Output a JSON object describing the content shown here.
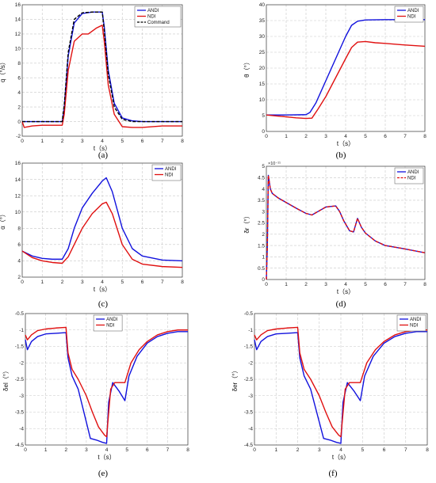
{
  "colors": {
    "andi": "#1111dd",
    "ndi": "#e01010",
    "command": "#000000"
  },
  "captions": [
    "(a)",
    "(b)",
    "(c)",
    "(d)",
    "(e)",
    "(f)"
  ],
  "chart_data": [
    {
      "type": "line",
      "xlabel": "t（s）",
      "ylabel": "q（°/s）",
      "xlim": [
        0,
        8
      ],
      "ylim": [
        -2,
        16
      ],
      "xticks": [
        0,
        1,
        2,
        3,
        4,
        5,
        6,
        7,
        8
      ],
      "yticks": [
        -2,
        0,
        2,
        4,
        6,
        8,
        10,
        12,
        14,
        16
      ],
      "grid": true,
      "legend": "top-right",
      "series": [
        {
          "name": "ANDI",
          "style": "solid",
          "color": "andi",
          "x": [
            0,
            0.5,
            1,
            1.5,
            2,
            2.1,
            2.3,
            2.6,
            3,
            3.5,
            4,
            4.1,
            4.3,
            4.6,
            5,
            5.5,
            6,
            7,
            8
          ],
          "y": [
            0,
            0,
            0,
            0,
            0,
            2,
            9,
            13.5,
            14.8,
            15,
            15,
            13,
            7,
            2.5,
            0.5,
            0.1,
            0,
            0,
            0
          ]
        },
        {
          "name": "NDI",
          "style": "solid",
          "color": "ndi",
          "x": [
            0,
            0.1,
            0.5,
            1,
            1.5,
            2,
            2.1,
            2.3,
            2.6,
            3,
            3.3,
            3.7,
            4,
            4.1,
            4.3,
            4.6,
            5,
            5.5,
            6,
            7,
            8
          ],
          "y": [
            0,
            -0.8,
            -0.6,
            -0.5,
            -0.5,
            -0.5,
            1,
            7,
            11,
            12,
            12,
            12.8,
            13.2,
            11,
            5,
            1,
            -0.7,
            -0.8,
            -0.8,
            -0.6,
            -0.6
          ]
        },
        {
          "name": "Command",
          "style": "dashed",
          "color": "command",
          "x": [
            0,
            0.5,
            1,
            1.5,
            2,
            2.1,
            2.3,
            2.6,
            3,
            3.5,
            4,
            4.1,
            4.3,
            4.6,
            5,
            5.5,
            6,
            7,
            8
          ],
          "y": [
            0,
            0,
            0,
            0,
            0,
            2.2,
            9.5,
            14,
            14.9,
            15,
            15,
            12.5,
            6.5,
            2,
            0.3,
            0,
            0,
            0,
            0
          ]
        }
      ]
    },
    {
      "type": "line",
      "xlabel": "t（s）",
      "ylabel": "θ（°）",
      "xlim": [
        0,
        8
      ],
      "ylim": [
        0,
        40
      ],
      "xticks": [
        0,
        1,
        2,
        3,
        4,
        5,
        6,
        7,
        8
      ],
      "yticks": [
        0,
        5,
        10,
        15,
        20,
        25,
        30,
        35,
        40
      ],
      "grid": true,
      "legend": "top-right",
      "series": [
        {
          "name": "ANDI",
          "style": "solid",
          "color": "andi",
          "x": [
            0,
            1,
            2,
            2.2,
            2.5,
            3,
            3.5,
            4,
            4.3,
            4.6,
            5,
            6,
            7,
            8
          ],
          "y": [
            5.2,
            5.2,
            5.3,
            6,
            9,
            16,
            23,
            30,
            33.5,
            34.8,
            35.2,
            35.3,
            35.3,
            35.3
          ]
        },
        {
          "name": "NDI",
          "style": "solid",
          "color": "ndi",
          "x": [
            0,
            0.5,
            1,
            1.5,
            2,
            2.3,
            2.6,
            3,
            3.5,
            4,
            4.3,
            4.6,
            5,
            5.5,
            6,
            7,
            8
          ],
          "y": [
            5.2,
            4.9,
            4.6,
            4.3,
            4.1,
            4.2,
            7,
            11,
            17,
            23,
            26.5,
            28.2,
            28.4,
            28,
            27.8,
            27.3,
            26.9
          ]
        }
      ]
    },
    {
      "type": "line",
      "xlabel": "t（s）",
      "ylabel": "α（°）",
      "xlim": [
        0,
        8
      ],
      "ylim": [
        2,
        16
      ],
      "xticks": [
        0,
        1,
        2,
        3,
        4,
        5,
        6,
        7,
        8
      ],
      "yticks": [
        2,
        4,
        6,
        8,
        10,
        12,
        14,
        16
      ],
      "grid": true,
      "legend": "top-right",
      "series": [
        {
          "name": "ANDI",
          "style": "solid",
          "color": "andi",
          "x": [
            0,
            0.5,
            1,
            1.5,
            2,
            2.3,
            2.6,
            3,
            3.5,
            4,
            4.2,
            4.5,
            5,
            5.5,
            6,
            7,
            8
          ],
          "y": [
            5.2,
            4.6,
            4.3,
            4.2,
            4.2,
            5.5,
            8,
            10.5,
            12.3,
            13.8,
            14.2,
            12.5,
            8,
            5.5,
            4.6,
            4.1,
            4.0
          ]
        },
        {
          "name": "NDI",
          "style": "solid",
          "color": "ndi",
          "x": [
            0,
            0.5,
            1,
            1.5,
            2,
            2.3,
            2.6,
            3,
            3.5,
            4,
            4.2,
            4.5,
            5,
            5.5,
            6,
            7,
            8
          ],
          "y": [
            5.2,
            4.4,
            4.0,
            3.8,
            3.7,
            4.5,
            6,
            8,
            9.8,
            11,
            11.2,
            9.8,
            6,
            4.2,
            3.6,
            3.3,
            3.2
          ]
        }
      ]
    },
    {
      "type": "line",
      "xlabel": "t（s）",
      "ylabel": "δr（°）",
      "sci_multiplier": "×10⁻¹¹",
      "xlim": [
        0,
        8
      ],
      "ylim": [
        0,
        5
      ],
      "xticks": [
        0,
        1,
        2,
        3,
        4,
        5,
        6,
        7,
        8
      ],
      "yticks": [
        0,
        0.5,
        1,
        1.5,
        2,
        2.5,
        3,
        3.5,
        4,
        4.5,
        5
      ],
      "grid": true,
      "legend": "top-right",
      "series": [
        {
          "name": "ANDI",
          "style": "solid",
          "color": "andi",
          "x": [
            0,
            0.05,
            0.1,
            0.15,
            0.2,
            0.3,
            0.6,
            1,
            1.5,
            2,
            2.3,
            2.6,
            3,
            3.5,
            3.7,
            3.9,
            4.2,
            4.4,
            4.5,
            4.6,
            4.8,
            5,
            5.5,
            6,
            7,
            8
          ],
          "y": [
            0,
            1.5,
            4.6,
            4.3,
            4.0,
            3.8,
            3.6,
            3.4,
            3.15,
            2.92,
            2.85,
            3.0,
            3.2,
            3.25,
            3.0,
            2.6,
            2.15,
            2.1,
            2.4,
            2.7,
            2.3,
            2.05,
            1.7,
            1.5,
            1.35,
            1.18
          ]
        },
        {
          "name": "NDI",
          "style": "dashed",
          "color": "ndi",
          "x": [
            0,
            0.05,
            0.1,
            0.15,
            0.2,
            0.3,
            0.6,
            1,
            1.5,
            2,
            2.3,
            2.6,
            3,
            3.5,
            3.7,
            3.9,
            4.2,
            4.4,
            4.5,
            4.6,
            4.8,
            5,
            5.5,
            6,
            7,
            8
          ],
          "y": [
            0,
            1.5,
            4.6,
            4.3,
            4.0,
            3.8,
            3.6,
            3.4,
            3.15,
            2.92,
            2.85,
            3.0,
            3.2,
            3.25,
            3.0,
            2.6,
            2.15,
            2.1,
            2.4,
            2.7,
            2.3,
            2.05,
            1.7,
            1.5,
            1.35,
            1.18
          ]
        }
      ]
    },
    {
      "type": "line",
      "xlabel": "t（s）",
      "ylabel": "δel（°）",
      "xlim": [
        0,
        8
      ],
      "ylim": [
        -4.5,
        -0.5
      ],
      "xticks": [
        0,
        1,
        2,
        3,
        4,
        5,
        6,
        7,
        8
      ],
      "yticks": [
        -4.5,
        -4,
        -3.5,
        -3,
        -2.5,
        -2,
        -1.5,
        -1,
        -0.5
      ],
      "grid": true,
      "legend": "top-center",
      "series": [
        {
          "name": "ANDI",
          "style": "solid",
          "color": "andi",
          "x": [
            0,
            0.1,
            0.3,
            0.6,
            1,
            1.5,
            2,
            2.1,
            2.3,
            2.6,
            3,
            3.2,
            3.5,
            3.8,
            4.0,
            4.1,
            4.3,
            4.6,
            4.9,
            5.1,
            5.5,
            6,
            6.5,
            7,
            7.5,
            8
          ],
          "y": [
            -1.3,
            -1.6,
            -1.35,
            -1.2,
            -1.12,
            -1.1,
            -1.08,
            -1.85,
            -2.4,
            -2.8,
            -3.8,
            -4.3,
            -4.35,
            -4.42,
            -4.45,
            -3.2,
            -2.6,
            -2.85,
            -3.15,
            -2.4,
            -1.8,
            -1.4,
            -1.2,
            -1.1,
            -1.05,
            -1.05
          ]
        },
        {
          "name": "NDI",
          "style": "solid",
          "color": "ndi",
          "x": [
            0,
            0.1,
            0.3,
            0.6,
            1,
            1.5,
            2,
            2.1,
            2.3,
            2.6,
            3,
            3.3,
            3.6,
            3.9,
            4.0,
            4.2,
            4.4,
            4.6,
            4.9,
            5.2,
            5.6,
            6,
            6.5,
            7,
            7.5,
            8
          ],
          "y": [
            -1.15,
            -1.3,
            -1.15,
            -1.02,
            -0.97,
            -0.94,
            -0.92,
            -1.7,
            -2.2,
            -2.5,
            -3.0,
            -3.5,
            -3.95,
            -4.2,
            -4.25,
            -2.8,
            -2.6,
            -2.6,
            -2.6,
            -2.0,
            -1.6,
            -1.35,
            -1.15,
            -1.05,
            -1.0,
            -1.0
          ]
        }
      ]
    },
    {
      "type": "line",
      "xlabel": "t（s）",
      "ylabel": "δer（°）",
      "xlim": [
        0,
        8
      ],
      "ylim": [
        -4.5,
        -0.5
      ],
      "xticks": [
        0,
        1,
        2,
        3,
        4,
        5,
        6,
        7,
        8
      ],
      "yticks": [
        -4.5,
        -4,
        -3.5,
        -3,
        -2.5,
        -2,
        -1.5,
        -1,
        -0.5
      ],
      "grid": true,
      "legend": "top-right",
      "series": [
        {
          "name": "ANDI",
          "style": "solid",
          "color": "andi",
          "x": [
            0,
            0.1,
            0.3,
            0.6,
            1,
            1.5,
            2,
            2.1,
            2.3,
            2.6,
            3,
            3.2,
            3.5,
            3.8,
            4.0,
            4.1,
            4.3,
            4.6,
            4.9,
            5.1,
            5.5,
            6,
            6.5,
            7,
            7.5,
            8
          ],
          "y": [
            -1.3,
            -1.6,
            -1.35,
            -1.2,
            -1.12,
            -1.1,
            -1.08,
            -1.85,
            -2.4,
            -2.8,
            -3.8,
            -4.3,
            -4.35,
            -4.42,
            -4.45,
            -3.2,
            -2.6,
            -2.85,
            -3.15,
            -2.4,
            -1.8,
            -1.4,
            -1.2,
            -1.1,
            -1.05,
            -1.05
          ]
        },
        {
          "name": "NDI",
          "style": "solid",
          "color": "ndi",
          "x": [
            0,
            0.1,
            0.3,
            0.6,
            1,
            1.5,
            2,
            2.1,
            2.3,
            2.6,
            3,
            3.3,
            3.6,
            3.9,
            4.0,
            4.2,
            4.4,
            4.6,
            4.9,
            5.2,
            5.6,
            6,
            6.5,
            7,
            7.5,
            8
          ],
          "y": [
            -1.15,
            -1.3,
            -1.15,
            -1.02,
            -0.97,
            -0.94,
            -0.92,
            -1.7,
            -2.2,
            -2.5,
            -3.0,
            -3.5,
            -3.95,
            -4.2,
            -4.25,
            -2.8,
            -2.6,
            -2.6,
            -2.6,
            -2.0,
            -1.6,
            -1.35,
            -1.15,
            -1.05,
            -1.0,
            -1.0
          ]
        }
      ]
    }
  ]
}
